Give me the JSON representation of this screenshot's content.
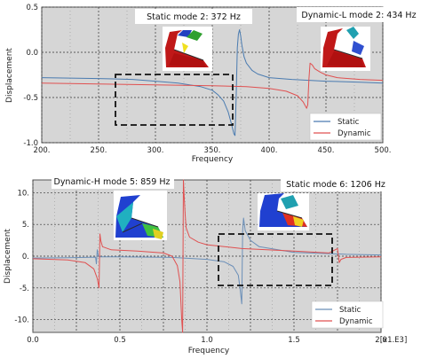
{
  "chart_data": [
    {
      "type": "line",
      "xlabel": "Frequency",
      "ylabel": "Displacement",
      "xlim": [
        200,
        500
      ],
      "ylim": [
        -1.0,
        0.5
      ],
      "xticks": [
        200,
        250,
        300,
        350,
        400,
        450,
        500
      ],
      "xtick_labels": [
        "200.",
        "250.",
        "300.",
        "350.",
        "400.",
        "450.",
        "500."
      ],
      "yticks": [
        -1.0,
        -0.5,
        0.0,
        0.5
      ],
      "ytick_labels": [
        "-1.0",
        "-0.5",
        "0.0",
        "0.5"
      ],
      "grid": true,
      "background": "#d6d6d6",
      "legend_position": "bottom-right",
      "series": [
        {
          "name": "Static",
          "color": "#4a7bb0",
          "x": [
            200,
            250,
            280,
            300,
            320,
            340,
            350,
            355,
            360,
            364,
            367,
            369,
            370,
            371,
            372,
            373,
            374,
            375,
            376,
            378,
            380,
            385,
            390,
            400,
            420,
            450,
            480,
            500
          ],
          "y": [
            -0.28,
            -0.29,
            -0.3,
            -0.32,
            -0.34,
            -0.38,
            -0.42,
            -0.47,
            -0.54,
            -0.66,
            -0.8,
            -0.9,
            -0.92,
            -0.5,
            0.05,
            0.2,
            0.25,
            0.18,
            0.08,
            -0.05,
            -0.12,
            -0.2,
            -0.24,
            -0.28,
            -0.3,
            -0.32,
            -0.33,
            -0.34
          ]
        },
        {
          "name": "Dynamic",
          "color": "#e05050",
          "x": [
            200,
            250,
            300,
            350,
            380,
            400,
            415,
            425,
            430,
            433,
            434,
            435,
            436,
            438,
            440,
            445,
            450,
            460,
            480,
            500
          ],
          "y": [
            -0.34,
            -0.35,
            -0.36,
            -0.37,
            -0.38,
            -0.4,
            -0.43,
            -0.48,
            -0.55,
            -0.62,
            -0.58,
            -0.3,
            -0.12,
            -0.14,
            -0.18,
            -0.22,
            -0.25,
            -0.28,
            -0.3,
            -0.31
          ]
        }
      ],
      "annotations": [
        "Static mode 2: 372 Hz",
        "Dynamic-L mode 2: 434 Hz"
      ]
    },
    {
      "type": "line",
      "xlabel": "Frequency",
      "ylabel": "Displacement",
      "x_multiplier_label": "[x1.E3]",
      "xlim": [
        0.0,
        2.0
      ],
      "ylim": [
        -12,
        12
      ],
      "xticks": [
        0.0,
        0.25,
        0.5,
        0.75,
        1.0,
        1.25,
        1.5,
        1.75,
        2.0
      ],
      "xtick_labels": [
        "0.0",
        "",
        "0.5",
        "",
        "1.0",
        "",
        "1.5",
        "",
        "2.0"
      ],
      "yticks": [
        -10,
        -5,
        0,
        5,
        10
      ],
      "ytick_labels": [
        "-10.",
        "-5.",
        "0.",
        "5.",
        "10."
      ],
      "grid": true,
      "background": "#d6d6d6",
      "legend_position": "bottom-right",
      "series": [
        {
          "name": "Static",
          "color": "#6b8fb8",
          "x": [
            0.0,
            0.2,
            0.3,
            0.36,
            0.365,
            0.37,
            0.375,
            0.38,
            0.5,
            0.8,
            1.0,
            1.1,
            1.15,
            1.18,
            1.19,
            1.2,
            1.205,
            1.21,
            1.22,
            1.25,
            1.3,
            1.5,
            1.7,
            1.8,
            2.0
          ],
          "y": [
            -0.3,
            -0.25,
            -0.2,
            -0.15,
            -1.2,
            1.0,
            0.2,
            -0.1,
            -0.1,
            -0.2,
            -0.5,
            -0.9,
            -1.6,
            -3.0,
            -5.0,
            -7.5,
            4.0,
            6.0,
            4.0,
            2.5,
            1.5,
            0.6,
            0.4,
            0.3,
            0.2
          ]
        },
        {
          "name": "Dynamic",
          "color": "#e05050",
          "x": [
            0.0,
            0.2,
            0.3,
            0.35,
            0.37,
            0.38,
            0.385,
            0.39,
            0.4,
            0.45,
            0.6,
            0.75,
            0.8,
            0.83,
            0.845,
            0.855,
            0.86,
            0.865,
            0.87,
            0.875,
            0.88,
            0.9,
            0.95,
            1.0,
            1.2,
            1.5,
            1.7,
            1.75,
            1.76,
            1.77,
            1.8,
            2.0
          ],
          "y": [
            -0.4,
            -0.6,
            -1.0,
            -2.0,
            -3.5,
            -5.0,
            3.5,
            2.5,
            1.5,
            1.0,
            0.8,
            0.5,
            0.0,
            -1.5,
            -4.0,
            -10.0,
            -12.0,
            12.0,
            9.0,
            6.5,
            4.5,
            3.0,
            2.2,
            1.8,
            1.2,
            0.8,
            0.5,
            1.2,
            -1.0,
            -0.5,
            -0.2,
            -0.1
          ]
        }
      ],
      "annotations": [
        "Dynamic-H mode 5: 859 Hz",
        "Static mode 6: 1206 Hz"
      ]
    }
  ]
}
